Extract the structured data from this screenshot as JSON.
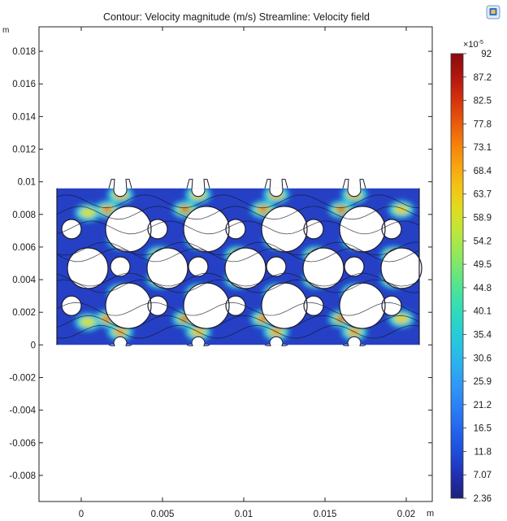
{
  "chart_data": {
    "type": "heatmap",
    "title": "Contour: Velocity magnitude (m/s)  Streamline: Velocity field",
    "x_unit": "m",
    "y_unit": "m",
    "xlim": [
      -0.0026,
      0.0216
    ],
    "ylim": [
      -0.0096,
      0.0195
    ],
    "x_ticks": [
      0,
      0.005,
      0.01,
      0.015,
      0.02
    ],
    "x_tick_labels": [
      "0",
      "0.005",
      "0.01",
      "0.015",
      "0.02"
    ],
    "y_ticks": [
      -0.008,
      -0.006,
      -0.004,
      -0.002,
      0,
      0.002,
      0.004,
      0.006,
      0.008,
      0.01,
      0.012,
      0.014,
      0.016,
      0.018
    ],
    "y_tick_labels": [
      "-0.008",
      "-0.006",
      "-0.004",
      "-0.002",
      "0",
      "0.002",
      "0.004",
      "0.006",
      "0.008",
      "0.01",
      "0.012",
      "0.014",
      "0.016",
      "0.018"
    ],
    "grid": false,
    "domain": {
      "x_range": [
        -0.0015,
        0.0208
      ],
      "y_range": [
        0,
        0.0096
      ],
      "large_circles": [
        {
          "x": 0.0004,
          "y": 0.0047,
          "r": 0.00125
        },
        {
          "x": 0.0029,
          "y": 0.0024,
          "r": 0.0014
        },
        {
          "x": 0.0029,
          "y": 0.0071,
          "r": 0.0014
        },
        {
          "x": 0.0053,
          "y": 0.0047,
          "r": 0.00125
        },
        {
          "x": 0.0077,
          "y": 0.0024,
          "r": 0.0014
        },
        {
          "x": 0.0077,
          "y": 0.0071,
          "r": 0.0014
        },
        {
          "x": 0.0101,
          "y": 0.0047,
          "r": 0.00125
        },
        {
          "x": 0.0125,
          "y": 0.0024,
          "r": 0.0014
        },
        {
          "x": 0.0125,
          "y": 0.0071,
          "r": 0.0014
        },
        {
          "x": 0.0149,
          "y": 0.0047,
          "r": 0.00125
        },
        {
          "x": 0.0173,
          "y": 0.0024,
          "r": 0.0014
        },
        {
          "x": 0.0173,
          "y": 0.0071,
          "r": 0.0014
        },
        {
          "x": 0.0197,
          "y": 0.0047,
          "r": 0.00125
        }
      ],
      "small_circles": [
        {
          "x": -0.0006,
          "y": 0.0071,
          "r": 0.0006
        },
        {
          "x": -0.0006,
          "y": 0.0024,
          "r": 0.0006
        },
        {
          "x": 0.0024,
          "y": 0.0048,
          "r": 0.0006
        },
        {
          "x": 0.0047,
          "y": 0.0071,
          "r": 0.0006
        },
        {
          "x": 0.0047,
          "y": 0.0024,
          "r": 0.0006
        },
        {
          "x": 0.0072,
          "y": 0.0048,
          "r": 0.0006
        },
        {
          "x": 0.0095,
          "y": 0.0071,
          "r": 0.0006
        },
        {
          "x": 0.0095,
          "y": 0.0024,
          "r": 0.0006
        },
        {
          "x": 0.012,
          "y": 0.0048,
          "r": 0.0006
        },
        {
          "x": 0.0143,
          "y": 0.0071,
          "r": 0.0006
        },
        {
          "x": 0.0143,
          "y": 0.0024,
          "r": 0.0006
        },
        {
          "x": 0.0168,
          "y": 0.0048,
          "r": 0.0006
        },
        {
          "x": 0.0191,
          "y": 0.0071,
          "r": 0.0006
        },
        {
          "x": 0.0191,
          "y": 0.0024,
          "r": 0.0006
        }
      ],
      "top_notches_x": [
        0.0024,
        0.0072,
        0.012,
        0.0168
      ],
      "bottom_notches_x": [
        0.0024,
        0.0072,
        0.012,
        0.0168
      ]
    },
    "hotspots": [
      {
        "x": 0.0016,
        "y": 0.0083,
        "v": 80
      },
      {
        "x": 0.0064,
        "y": 0.0083,
        "v": 85
      },
      {
        "x": 0.0112,
        "y": 0.0083,
        "v": 80
      },
      {
        "x": 0.016,
        "y": 0.0083,
        "v": 82
      },
      {
        "x": 0.0024,
        "y": 0.0092,
        "v": 75
      },
      {
        "x": 0.0072,
        "y": 0.0092,
        "v": 70
      },
      {
        "x": 0.012,
        "y": 0.0092,
        "v": 75
      },
      {
        "x": 0.0168,
        "y": 0.0092,
        "v": 72
      },
      {
        "x": 0.0024,
        "y": 0.0064,
        "v": 88
      },
      {
        "x": 0.0072,
        "y": 0.0064,
        "v": 85
      },
      {
        "x": 0.012,
        "y": 0.0064,
        "v": 85
      },
      {
        "x": 0.0168,
        "y": 0.0064,
        "v": 88
      },
      {
        "x": 0.0024,
        "y": 0.0032,
        "v": 88
      },
      {
        "x": 0.0072,
        "y": 0.0032,
        "v": 85
      },
      {
        "x": 0.012,
        "y": 0.0032,
        "v": 85
      },
      {
        "x": 0.0168,
        "y": 0.0032,
        "v": 88
      },
      {
        "x": 0.0048,
        "y": 0.004,
        "v": 80
      },
      {
        "x": 0.0096,
        "y": 0.004,
        "v": 78
      },
      {
        "x": 0.0144,
        "y": 0.004,
        "v": 80
      },
      {
        "x": 0.0192,
        "y": 0.004,
        "v": 76
      },
      {
        "x": 0.0048,
        "y": 0.0055,
        "v": 80
      },
      {
        "x": 0.0096,
        "y": 0.0055,
        "v": 78
      },
      {
        "x": 0.0144,
        "y": 0.0055,
        "v": 80
      },
      {
        "x": 0.0192,
        "y": 0.0055,
        "v": 76
      },
      {
        "x": 0.0016,
        "y": 0.0016,
        "v": 80
      },
      {
        "x": 0.0064,
        "y": 0.0016,
        "v": 82
      },
      {
        "x": 0.0112,
        "y": 0.0016,
        "v": 80
      },
      {
        "x": 0.016,
        "y": 0.0016,
        "v": 82
      },
      {
        "x": 0.0024,
        "y": 0.0008,
        "v": 72
      },
      {
        "x": 0.0072,
        "y": 0.0008,
        "v": 70
      },
      {
        "x": 0.012,
        "y": 0.0008,
        "v": 72
      },
      {
        "x": 0.0168,
        "y": 0.0008,
        "v": 72
      },
      {
        "x": 0.0004,
        "y": 0.0081,
        "v": 60
      },
      {
        "x": 0.0004,
        "y": 0.0014,
        "v": 60
      },
      {
        "x": 0.0197,
        "y": 0.0083,
        "v": 65
      },
      {
        "x": 0.0197,
        "y": 0.0016,
        "v": 65
      }
    ],
    "streamlines_y": [
      0.0008,
      0.0014,
      0.0022,
      0.0036,
      0.004,
      0.0055,
      0.0059,
      0.0072,
      0.0081,
      0.0088
    ],
    "colorbar": {
      "multiplier_label": "×10",
      "multiplier_exponent": "-5",
      "min": 2.36,
      "max": 92,
      "tick_labels": [
        "92",
        "87.2",
        "82.5",
        "77.8",
        "73.1",
        "68.4",
        "63.7",
        "58.9",
        "54.2",
        "49.5",
        "44.8",
        "40.1",
        "35.4",
        "30.6",
        "25.9",
        "21.2",
        "16.5",
        "11.8",
        "7.07",
        "2.36"
      ],
      "colors": [
        "#20207a",
        "#1f2fb0",
        "#1f4ad8",
        "#2263ee",
        "#2a7df5",
        "#2f96f5",
        "#2cb0ef",
        "#26c6e0",
        "#2ad6c6",
        "#3fe0a8",
        "#66e67f",
        "#93e85a",
        "#bde63c",
        "#e0dc20",
        "#f3c415",
        "#f8a20f",
        "#f47d0c",
        "#e8550c",
        "#d2300c",
        "#b01510",
        "#8a0c10"
      ]
    }
  }
}
